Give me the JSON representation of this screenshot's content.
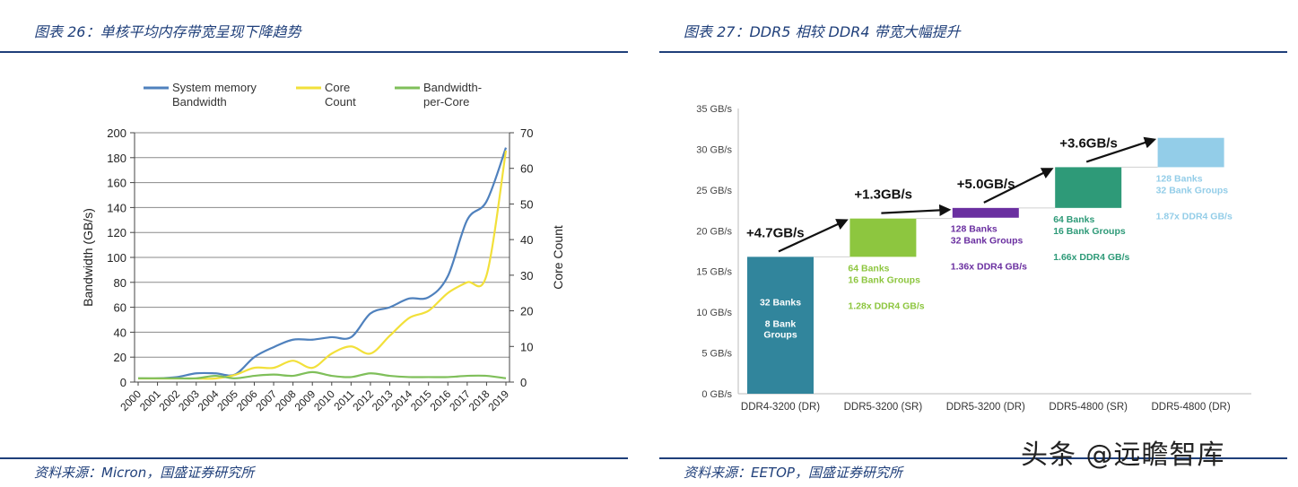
{
  "left_panel": {
    "caption": "图表 26：单核平均内存带宽呈现下降趋势",
    "source": "资料来源：Micron，国盛证券研究所"
  },
  "right_panel": {
    "caption": "图表 27：DDR5 相较 DDR4 带宽大幅提升",
    "source": "资料来源：EETOP，国盛证券研究所"
  },
  "watermark": "头条 @远瞻智库",
  "chart_data": [
    {
      "type": "line",
      "title": "",
      "legend_position": "top",
      "grid": true,
      "ylabel": "Bandwidth (GB/s)",
      "y2label": "Core Count",
      "ylim": [
        0,
        200
      ],
      "y2lim": [
        0,
        70
      ],
      "yticks": [
        "0",
        "20",
        "40",
        "60",
        "80",
        "100",
        "120",
        "140",
        "160",
        "180",
        "200"
      ],
      "y2ticks": [
        "0",
        "10",
        "20",
        "30",
        "40",
        "50",
        "60",
        "70"
      ],
      "categories": [
        "2000",
        "2001",
        "2002",
        "2003",
        "2004",
        "2005",
        "2006",
        "2007",
        "2008",
        "2009",
        "2010",
        "2011",
        "2012",
        "2013",
        "2014",
        "2015",
        "2016",
        "2017",
        "2018",
        "2019"
      ],
      "series": [
        {
          "name": "System memory Bandwidth",
          "legend_lines": [
            "System memory",
            "Bandwidth"
          ],
          "color": "#4f81bd",
          "axis": "left",
          "values": [
            3,
            3,
            4,
            7,
            7,
            6,
            20,
            28,
            34,
            34,
            36,
            36,
            55,
            60,
            67,
            68,
            85,
            130,
            145,
            188
          ]
        },
        {
          "name": "Core Count",
          "legend_lines": [
            "Core",
            "Count"
          ],
          "color": "#f2e03a",
          "axis": "right",
          "values": [
            1,
            1,
            1,
            1,
            1,
            2,
            4,
            4,
            6,
            4,
            8,
            10,
            8,
            13,
            18,
            20,
            25,
            28,
            30,
            65
          ]
        },
        {
          "name": "Bandwidth-per-Core",
          "legend_lines": [
            "Bandwidth-",
            "per-Core"
          ],
          "color": "#7fbf5a",
          "axis": "left",
          "values": [
            3,
            3,
            3,
            3,
            5,
            3,
            5,
            6,
            5,
            8,
            5,
            4,
            7,
            5,
            4,
            4,
            4,
            5,
            5,
            3
          ]
        }
      ]
    },
    {
      "type": "bar",
      "subtype": "waterfall",
      "title": "",
      "grid": false,
      "ylim": [
        0,
        35
      ],
      "yticks": [
        "0 GB/s",
        "5 GB/s",
        "10 GB/s",
        "15 GB/s",
        "20 GB/s",
        "25 GB/s",
        "30 GB/s",
        "35 GB/s"
      ],
      "categories": [
        "DDR4-3200 (DR)",
        "DDR5-3200 (SR)",
        "DDR5-3200 (DR)",
        "DDR5-4800 (SR)",
        "DDR5-4800 (DR)"
      ],
      "bars": [
        {
          "start": 0,
          "end": 16.8,
          "color": "#31859c",
          "label_color": "#ffffff",
          "inside": true,
          "labels": [
            "32 Banks",
            "",
            "8 Bank",
            "Groups"
          ],
          "ratio": ""
        },
        {
          "start": 16.8,
          "end": 21.5,
          "color": "#8dc63f",
          "label_color": "#8dc63f",
          "inside": false,
          "labels": [
            "64 Banks",
            "16 Bank Groups"
          ],
          "ratio": "1.28x DDR4 GB/s"
        },
        {
          "start": 21.6,
          "end": 22.8,
          "color": "#6a2fa0",
          "label_color": "#6a2fa0",
          "inside": false,
          "labels": [
            "128 Banks",
            "32 Bank Groups"
          ],
          "ratio": "1.36x DDR4 GB/s"
        },
        {
          "start": 22.8,
          "end": 27.8,
          "color": "#2e9a78",
          "label_color": "#2e9a78",
          "inside": false,
          "labels": [
            "64 Banks",
            "16 Bank Groups"
          ],
          "ratio": "1.66x DDR4 GB/s"
        },
        {
          "start": 27.8,
          "end": 31.4,
          "color": "#93cde8",
          "label_color": "#93cde8",
          "inside": false,
          "labels": [
            "128 Banks",
            "32 Bank Groups"
          ],
          "ratio": "1.87x DDR4 GB/s"
        }
      ],
      "annotations": [
        "+4.7GB/s",
        "+1.3GB/s",
        "+5.0GB/s",
        "+3.6GB/s"
      ]
    }
  ]
}
